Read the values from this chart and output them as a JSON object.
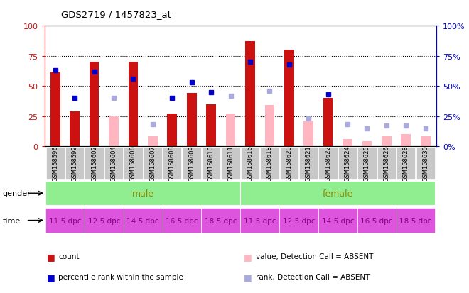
{
  "title": "GDS2719 / 1457823_at",
  "samples": [
    "GSM158596",
    "GSM158599",
    "GSM158602",
    "GSM158604",
    "GSM158606",
    "GSM158607",
    "GSM158608",
    "GSM158609",
    "GSM158610",
    "GSM158611",
    "GSM158616",
    "GSM158618",
    "GSM158620",
    "GSM158621",
    "GSM158622",
    "GSM158624",
    "GSM158625",
    "GSM158626",
    "GSM158628",
    "GSM158630"
  ],
  "red_bars": [
    62,
    29,
    70,
    0,
    70,
    0,
    27,
    44,
    35,
    0,
    87,
    0,
    80,
    0,
    40,
    0,
    0,
    0,
    0,
    0
  ],
  "pink_bars": [
    0,
    0,
    0,
    25,
    0,
    8,
    0,
    0,
    0,
    27,
    0,
    34,
    0,
    21,
    0,
    6,
    4,
    8,
    10,
    8
  ],
  "blue_squares": [
    63,
    40,
    62,
    0,
    56,
    0,
    40,
    53,
    45,
    0,
    70,
    0,
    68,
    0,
    43,
    0,
    0,
    0,
    0,
    0
  ],
  "light_blue_squares": [
    0,
    0,
    0,
    40,
    0,
    18,
    0,
    0,
    0,
    42,
    0,
    46,
    0,
    23,
    0,
    18,
    15,
    17,
    17,
    15
  ],
  "ylim": [
    0,
    100
  ],
  "red_color": "#CC1111",
  "pink_color": "#FFB6C1",
  "blue_color": "#0000CC",
  "light_blue_color": "#AAAADD",
  "gray_color": "#C8C8C8",
  "green_color": "#90EE90",
  "purple_color": "#DD55DD",
  "male_text_color": "#888800",
  "female_text_color": "#880088",
  "ytick_labels": [
    "0",
    "25",
    "50",
    "75",
    "100"
  ],
  "ytick_values": [
    0,
    25,
    50,
    75,
    100
  ],
  "grid_vals": [
    25,
    50,
    75
  ],
  "time_labels": [
    "11.5 dpc",
    "12.5 dpc",
    "14.5 dpc",
    "16.5 dpc",
    "18.5 dpc",
    "11.5 dpc",
    "12.5 dpc",
    "14.5 dpc",
    "16.5 dpc",
    "18.5 dpc"
  ],
  "legend_items": [
    {
      "label": "count",
      "color": "#CC1111"
    },
    {
      "label": "percentile rank within the sample",
      "color": "#0000CC"
    },
    {
      "label": "value, Detection Call = ABSENT",
      "color": "#FFB6C1"
    },
    {
      "label": "rank, Detection Call = ABSENT",
      "color": "#AAAADD"
    }
  ]
}
